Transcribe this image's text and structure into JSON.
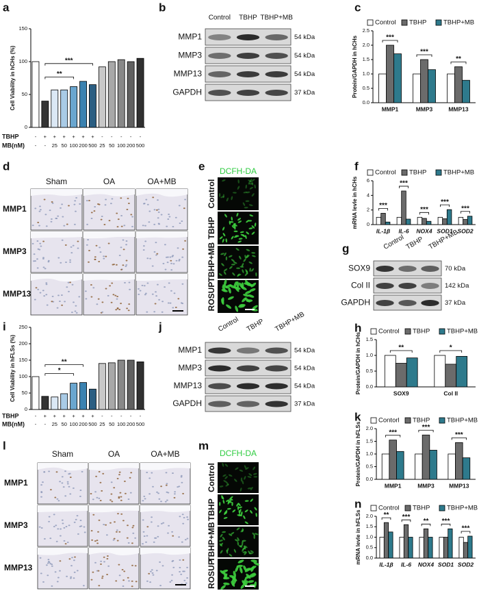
{
  "chart_data": [
    {
      "label": "a",
      "type": "bar",
      "y_label": "Cell Viability in hCHs (%)",
      "ylim": [
        0,
        150
      ],
      "yticks": [
        0,
        50,
        100,
        150
      ],
      "values": [
        100,
        40,
        57,
        57,
        62,
        70,
        65,
        92,
        100,
        103,
        100,
        105
      ],
      "colors": [
        "#ffffff",
        "#333333",
        "#dbe8f5",
        "#a9cbe6",
        "#6aa6cf",
        "#3b82b0",
        "#2b5e82",
        "#c8c8c8",
        "#a8a8a8",
        "#888888",
        "#606060",
        "#303030"
      ],
      "rows": [
        {
          "name": "TBHP",
          "labels": [
            "-",
            "+",
            "+",
            "+",
            "+",
            "+",
            "+",
            "-",
            "-",
            "-",
            "-",
            "-"
          ]
        },
        {
          "name": "MB(nM)",
          "labels": [
            "-",
            "-",
            "25",
            "50",
            "100",
            "200",
            "500",
            "25",
            "50",
            "100",
            "200",
            "500"
          ]
        }
      ],
      "annotations": [
        "***",
        "**"
      ]
    },
    {
      "label": "c",
      "type": "grouped_bar",
      "y_label": "Protein/GAPDH in hCHs",
      "ylim": [
        0,
        2.5
      ],
      "yticks": [
        {
          "value": 0,
          "label": "0.0"
        },
        0.5,
        {
          "value": 1,
          "label": "1.0"
        },
        1.5,
        {
          "value": 2,
          "label": "2.0"
        },
        2.5
      ],
      "categories": [
        "MMP1",
        "MMP3",
        "MMP13"
      ],
      "series": [
        {
          "name": "Control",
          "color": "#ffffff",
          "values": [
            1.0,
            1.0,
            1.0
          ]
        },
        {
          "name": "TBHP",
          "color": "#6b6b6b",
          "values": [
            2.0,
            1.5,
            1.25
          ]
        },
        {
          "name": "TBHP+MB",
          "color": "#2e7a8c",
          "values": [
            1.7,
            1.15,
            0.78
          ]
        }
      ],
      "significance": [
        "***",
        "***",
        "**"
      ]
    },
    {
      "label": "f",
      "type": "grouped_bar",
      "y_label": "mRNA levle in hCHs",
      "ylim": [
        0,
        6
      ],
      "yticks": [
        0,
        2,
        4,
        6
      ],
      "italic_categories": true,
      "categories": [
        "IL-1β",
        "IL-6",
        "NOX4",
        "SOD1",
        "SOD2"
      ],
      "series": [
        {
          "name": "Control",
          "color": "#ffffff",
          "values": [
            1.0,
            1.0,
            1.0,
            1.0,
            1.0
          ]
        },
        {
          "name": "TBHP",
          "color": "#6b6b6b",
          "values": [
            1.55,
            4.6,
            0.85,
            0.8,
            0.7
          ]
        },
        {
          "name": "TBHP+MB",
          "color": "#2e7a8c",
          "values": [
            0.35,
            0.75,
            0.45,
            2.05,
            1.15
          ]
        }
      ],
      "significance": [
        "***",
        "***",
        "***",
        "***",
        "***"
      ]
    },
    {
      "label": "h",
      "type": "grouped_bar",
      "y_label": "Protein/GAPDH in hCHs",
      "ylim": [
        0,
        1.5
      ],
      "yticks": [
        {
          "value": 0,
          "label": "0.0"
        },
        0.5,
        {
          "value": 1,
          "label": "1.0"
        },
        1.5
      ],
      "categories": [
        "SOX9",
        "Col II"
      ],
      "series": [
        {
          "name": "Control",
          "color": "#ffffff",
          "values": [
            1.0,
            1.0
          ]
        },
        {
          "name": "TBHP",
          "color": "#6b6b6b",
          "values": [
            0.75,
            0.72
          ]
        },
        {
          "name": "TBHP+MB",
          "color": "#2e7a8c",
          "values": [
            0.92,
            0.97
          ]
        }
      ],
      "significance": [
        "**",
        "*"
      ]
    },
    {
      "label": "i",
      "type": "bar",
      "y_label": "Cell Viability in hFLSs (%)",
      "ylim": [
        0,
        250
      ],
      "yticks": [
        0,
        50,
        100,
        150,
        200,
        250
      ],
      "values": [
        100,
        40,
        38,
        48,
        80,
        82,
        62,
        140,
        142,
        150,
        150,
        145
      ],
      "colors": [
        "#ffffff",
        "#333333",
        "#dbe8f5",
        "#a9cbe6",
        "#6aa6cf",
        "#3b82b0",
        "#2b5e82",
        "#c8c8c8",
        "#a8a8a8",
        "#888888",
        "#606060",
        "#303030"
      ],
      "rows": [
        {
          "name": "TBHP",
          "labels": [
            "-",
            "+",
            "+",
            "+",
            "+",
            "+",
            "+",
            "-",
            "-",
            "-",
            "-",
            "-"
          ]
        },
        {
          "name": "MB(nM)",
          "labels": [
            "-",
            "-",
            "25",
            "50",
            "100",
            "200",
            "500",
            "25",
            "50",
            "100",
            "200",
            "500"
          ]
        }
      ],
      "annotations": [
        "**",
        "*"
      ]
    },
    {
      "label": "k",
      "type": "grouped_bar",
      "y_label": "Protein/GAPDH in hFLSs",
      "ylim": [
        0,
        2
      ],
      "yticks": [
        {
          "value": 0,
          "label": "0.0"
        },
        0.5,
        {
          "value": 1,
          "label": "1.0"
        },
        1.5,
        {
          "value": 2,
          "label": "2.0"
        }
      ],
      "categories": [
        "MMP1",
        "MMP3",
        "MMP13"
      ],
      "series": [
        {
          "name": "Contorl",
          "color": "#ffffff",
          "values": [
            1.0,
            1.0,
            1.0
          ]
        },
        {
          "name": "TBHP",
          "color": "#6b6b6b",
          "values": [
            1.55,
            1.75,
            1.45
          ]
        },
        {
          "name": "TBHP+MB",
          "color": "#2e7a8c",
          "values": [
            1.1,
            1.15,
            0.85
          ]
        }
      ],
      "significance": [
        "***",
        "***",
        "***"
      ]
    },
    {
      "label": "n",
      "type": "grouped_bar",
      "y_label": "mRNA levle in hFLSs",
      "ylim": [
        0,
        2
      ],
      "italic_categories": true,
      "yticks": [
        {
          "value": 0,
          "label": "0.0"
        },
        0.5,
        {
          "value": 1,
          "label": "1.0"
        },
        1.5,
        {
          "value": 2,
          "label": "2.0"
        }
      ],
      "categories": [
        "IL-1β",
        "IL-6",
        "NOX4",
        "SOD1",
        "SOD2"
      ],
      "series": [
        {
          "name": "Control",
          "color": "#ffffff",
          "values": [
            1.0,
            1.0,
            1.0,
            1.0,
            1.0
          ]
        },
        {
          "name": "TBHP",
          "color": "#6b6b6b",
          "values": [
            1.7,
            1.6,
            1.4,
            1.0,
            0.75
          ]
        },
        {
          "name": "TBHP+MB",
          "color": "#2e7a8c",
          "values": [
            1.25,
            1.0,
            1.0,
            1.4,
            1.05
          ]
        }
      ],
      "significance": [
        "**",
        "***",
        "**",
        "***",
        "***"
      ]
    }
  ],
  "blots": [
    {
      "label": "b",
      "columns": [
        "Control",
        "TBHP",
        "TBHP+MB"
      ],
      "rows": [
        {
          "name": "MMP1",
          "size": "54 kDa"
        },
        {
          "name": "MMP3",
          "size": "54 kDa"
        },
        {
          "name": "MMP13",
          "size": "54 kDa"
        },
        {
          "name": "GAPDH",
          "size": "37 kDa"
        }
      ]
    },
    {
      "label": "g",
      "columns": [
        "Control",
        "TBHP",
        "TBHP+MB"
      ],
      "rows": [
        {
          "name": "SOX9",
          "size": "70 kDa"
        },
        {
          "name": "Col II",
          "size": "142 kDa"
        },
        {
          "name": "GAPDH",
          "size": "37 kDa"
        }
      ]
    },
    {
      "label": "j",
      "columns": [
        "Control",
        "TBHP",
        "TBHP+MB"
      ],
      "rows": [
        {
          "name": "MMP1",
          "size": "54 kDa"
        },
        {
          "name": "MMP3",
          "size": "54 kDa"
        },
        {
          "name": "MMP13",
          "size": "54 kDa"
        },
        {
          "name": "GAPDH",
          "size": "37 kDa"
        }
      ]
    }
  ],
  "tissue_grids": [
    {
      "label": "d",
      "columns": [
        "Sham",
        "OA",
        "OA+MB"
      ],
      "rows": [
        "MMP1",
        "MMP3",
        "MMP13"
      ]
    },
    {
      "label": "l",
      "columns": [
        "Sham",
        "OA",
        "OA+MB"
      ],
      "rows": [
        "MMP1",
        "MMP3",
        "MMP13"
      ]
    }
  ],
  "fluorescence": [
    {
      "label": "e",
      "title": "DCFH-DA",
      "rows": [
        "Control",
        "TBHP",
        "TBHP+MB",
        "ROSUP"
      ]
    },
    {
      "label": "m",
      "title": "DCFH-DA",
      "rows": [
        "Control",
        "TBHP",
        "TBHP+MB",
        "ROSUP"
      ]
    }
  ]
}
